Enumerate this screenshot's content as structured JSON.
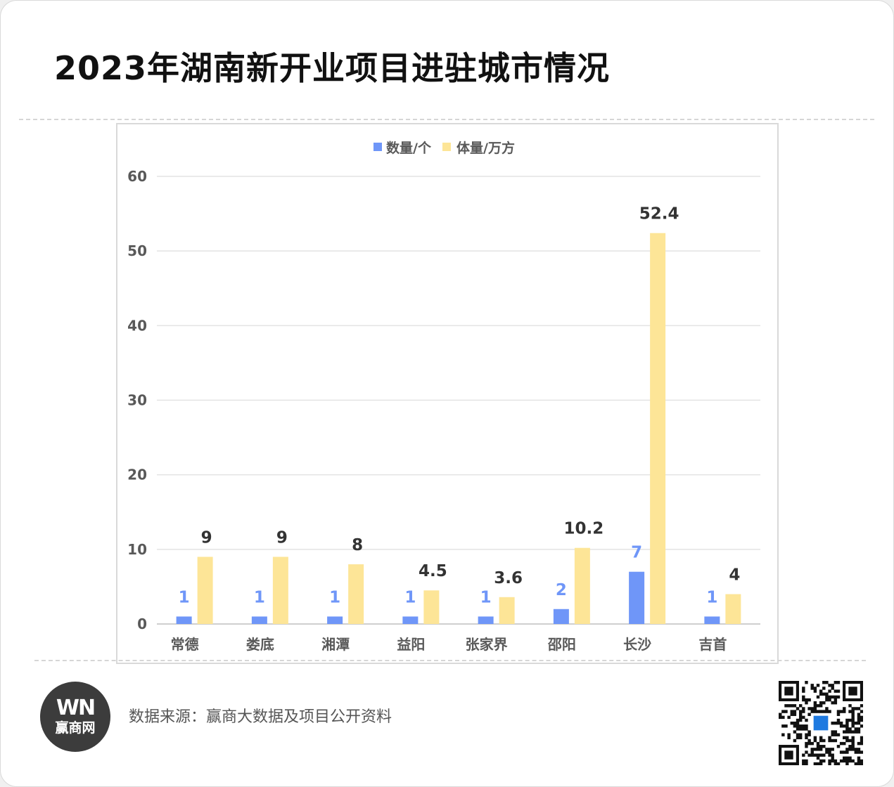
{
  "title": "2023年湖南新开业项目进驻城市情况",
  "source": "数据来源：赢商大数据及项目公开资料",
  "logo": {
    "mark": "WN",
    "text": "赢商网",
    "icon": "winshang-logo-icon"
  },
  "qr": {
    "icon": "qr-code-icon"
  },
  "colors": {
    "count": "#6f96f8",
    "volume": "#fde597",
    "count_label": "#6f96f8",
    "volume_label": "#333333"
  },
  "chart_data": {
    "type": "bar",
    "title": "",
    "xlabel": "",
    "ylabel": "",
    "ylim": [
      0,
      60
    ],
    "yticks": [
      0,
      10,
      20,
      30,
      40,
      50,
      60
    ],
    "grid": true,
    "legend_position": "top",
    "categories": [
      "常德",
      "娄底",
      "湘潭",
      "益阳",
      "张家界",
      "邵阳",
      "长沙",
      "吉首"
    ],
    "series": [
      {
        "name": "数量/个",
        "values": [
          1,
          1,
          1,
          1,
          1,
          2,
          7,
          1
        ],
        "labels": [
          "1",
          "1",
          "1",
          "1",
          "1",
          "2",
          "7",
          "1"
        ]
      },
      {
        "name": "体量/万方",
        "values": [
          9,
          9,
          8,
          4.5,
          3.6,
          10.2,
          52.4,
          4
        ],
        "labels": [
          "9",
          "9",
          "8",
          "4.5",
          "3.6",
          "10.2",
          "52.4",
          "4"
        ]
      }
    ]
  }
}
